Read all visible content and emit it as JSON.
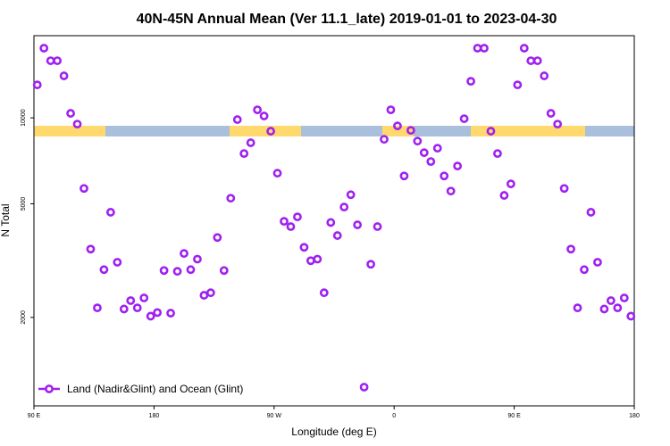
{
  "chart_data": {
    "type": "scatter",
    "title": "40N-45N Annual Mean (Ver 11.1_late)   2019-01-01 to 2023-04-30",
    "xlabel": "Longitude (deg E)",
    "ylabel": "N Total",
    "xlim": [
      90,
      540
    ],
    "ylim": [
      980,
      19400
    ],
    "log_y": true,
    "legend": "bottom-left",
    "xticks": [
      {
        "value": 90,
        "label": "90 E"
      },
      {
        "value": 180,
        "label": "180"
      },
      {
        "value": 270,
        "label": "90 W"
      },
      {
        "value": 360,
        "label": "0"
      },
      {
        "value": 450,
        "label": "90 E"
      },
      {
        "value": 540,
        "label": "180"
      }
    ],
    "yticks": [
      2000,
      5000,
      10000
    ],
    "x": [
      92.5,
      97.5,
      102.5,
      107.5,
      112.5,
      117.5,
      122.5,
      127.5,
      132.5,
      137.5,
      142.5,
      147.5,
      152.5,
      157.5,
      162.5,
      167.5,
      172.5,
      177.5,
      182.5,
      187.5,
      192.5,
      197.5,
      202.5,
      207.5,
      212.5,
      217.5,
      222.5,
      227.5,
      232.5,
      237.5,
      242.5,
      247.5,
      252.5,
      257.5,
      262.5,
      267.5,
      272.5,
      277.5,
      282.5,
      287.5,
      292.5,
      297.5,
      302.5,
      307.5,
      312.5,
      317.5,
      322.5,
      327.5,
      332.5,
      337.5,
      342.5,
      347.5,
      352.5,
      357.5,
      362.5,
      367.5,
      372.5,
      377.5,
      382.5,
      387.5,
      392.5,
      397.5,
      402.5,
      407.5,
      412.5,
      417.5,
      422.5,
      427.5,
      432.5,
      437.5,
      442.5,
      447.5,
      452.5,
      457.5,
      462.5,
      467.5,
      472.5,
      477.5,
      482.5,
      487.5,
      492.5,
      497.5,
      502.5,
      507.5,
      512.5,
      517.5,
      522.5,
      527.5,
      532.5,
      537.5
    ],
    "series": [
      {
        "name": "Land (Nadir&Glint) and Ocean (Glint)",
        "color": "#a020f0",
        "values": [
          13050,
          17540,
          15850,
          15850,
          14030,
          10370,
          9510,
          5660,
          3470,
          2160,
          2940,
          4670,
          3120,
          2140,
          2290,
          2160,
          2340,
          2020,
          2080,
          2920,
          2070,
          2900,
          3350,
          2940,
          3200,
          2390,
          2440,
          3810,
          2920,
          5230,
          9860,
          7500,
          8180,
          10670,
          10150,
          8980,
          6400,
          4340,
          4160,
          4500,
          3520,
          3160,
          3200,
          2440,
          4300,
          3870,
          4870,
          5380,
          4220,
          1140,
          3070,
          4160,
          8410,
          10670,
          9370,
          6260,
          9040,
          8290,
          7550,
          7030,
          7830,
          6260,
          5540,
          6780,
          9930,
          13430,
          17540,
          17540,
          8980,
          7500,
          5350,
          5870,
          13050,
          17540,
          15850,
          15850,
          14030,
          10370,
          9510,
          5660,
          3470,
          2160,
          2940,
          4670,
          3120,
          2140,
          2290,
          2160,
          2340,
          2020
        ]
      }
    ]
  }
}
